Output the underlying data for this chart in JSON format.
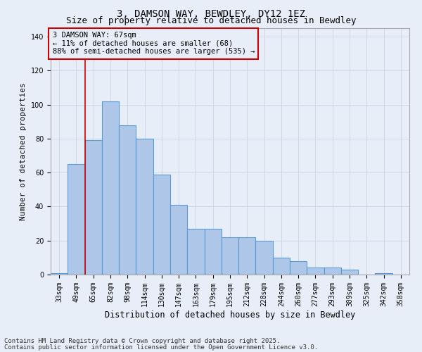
{
  "title1": "3, DAMSON WAY, BEWDLEY, DY12 1EZ",
  "title2": "Size of property relative to detached houses in Bewdley",
  "xlabel": "Distribution of detached houses by size in Bewdley",
  "ylabel": "Number of detached properties",
  "categories": [
    "33sqm",
    "49sqm",
    "65sqm",
    "82sqm",
    "98sqm",
    "114sqm",
    "130sqm",
    "147sqm",
    "163sqm",
    "179sqm",
    "195sqm",
    "212sqm",
    "228sqm",
    "244sqm",
    "260sqm",
    "277sqm",
    "293sqm",
    "309sqm",
    "325sqm",
    "342sqm",
    "358sqm"
  ],
  "values": [
    1,
    65,
    79,
    102,
    88,
    80,
    59,
    41,
    27,
    27,
    22,
    22,
    20,
    10,
    8,
    4,
    4,
    3,
    0,
    1,
    0
  ],
  "bar_color": "#aec6e8",
  "bar_edge_color": "#5b9bd5",
  "vline_x": 1.5,
  "marker_label": "3 DAMSON WAY: 67sqm\n← 11% of detached houses are smaller (68)\n88% of semi-detached houses are larger (535) →",
  "annotation_box_color": "#cc0000",
  "vline_color": "#cc0000",
  "grid_color": "#d0d8e8",
  "background_color": "#e8eef8",
  "ylim": [
    0,
    145
  ],
  "yticks": [
    0,
    20,
    40,
    60,
    80,
    100,
    120,
    140
  ],
  "footer1": "Contains HM Land Registry data © Crown copyright and database right 2025.",
  "footer2": "Contains public sector information licensed under the Open Government Licence v3.0.",
  "title1_fontsize": 10,
  "title2_fontsize": 9,
  "xlabel_fontsize": 8.5,
  "ylabel_fontsize": 8,
  "tick_fontsize": 7,
  "annotation_fontsize": 7.5,
  "footer_fontsize": 6.5
}
